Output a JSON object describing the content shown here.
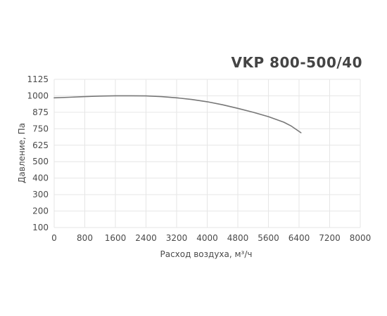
{
  "chart_data": {
    "type": "line",
    "title": "VKP 800-500/40",
    "xlabel": "Расход воздуха, м³/ч",
    "ylabel": "Давление, Па",
    "xlim": [
      0,
      8000
    ],
    "ylim": [
      100,
      1125
    ],
    "x_ticks": [
      "0",
      "800",
      "1600",
      "2400",
      "3200",
      "4000",
      "4800",
      "5600",
      "6400",
      "7200",
      "8000"
    ],
    "y_ticks": [
      "100",
      "200",
      "300",
      "400",
      "500",
      "625",
      "750",
      "875",
      "1000",
      "1125"
    ],
    "grid": true,
    "series": [
      {
        "x": [
          0,
          400,
          800,
          1200,
          1600,
          2000,
          2400,
          2800,
          3200,
          3600,
          4000,
          4400,
          4800,
          5200,
          5600,
          6000,
          6200,
          6450
        ],
        "y": [
          985,
          989,
          994,
          998,
          1000,
          1000,
          999,
          994,
          985,
          972,
          955,
          932,
          905,
          875,
          842,
          800,
          770,
          720
        ]
      }
    ],
    "colors": {
      "line": "#777777",
      "title": "#444444",
      "text": "#4a4a4a",
      "grid": "#e6e6e6"
    }
  }
}
